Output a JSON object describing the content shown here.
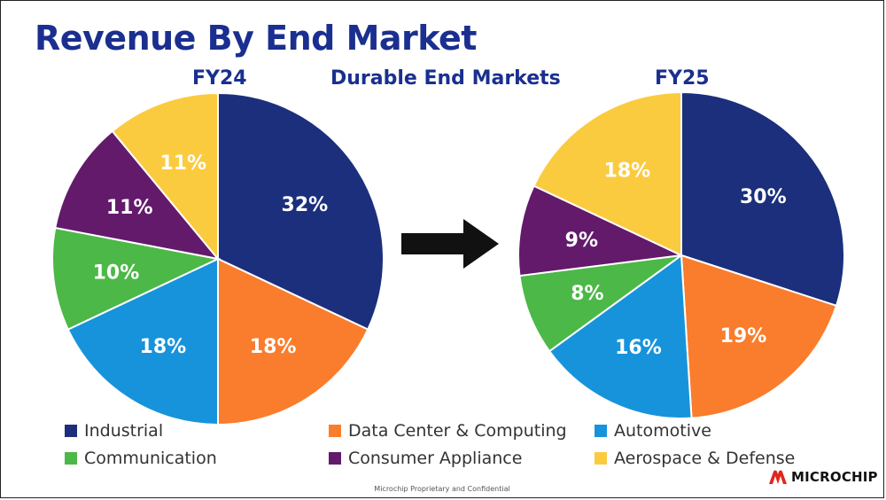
{
  "title": "Revenue By End Market",
  "subtitle": "Durable End Markets",
  "footer": "Microchip Proprietary and Confidential",
  "logo_text": "MICROCHIP",
  "colors": {
    "title": "#1a2f8f",
    "Industrial": "#1b2f7c",
    "Data Center & Computing": "#f97d2c",
    "Automotive": "#1793dc",
    "Communication": "#4cb847",
    "Consumer Appliance": "#631a6b",
    "Aerospace & Defense": "#fbcb3f",
    "arrow": "#111111",
    "logo_red": "#e1251b"
  },
  "legend": [
    {
      "label": "Industrial",
      "color": "#1b2f7c"
    },
    {
      "label": "Data Center & Computing",
      "color": "#f97d2c"
    },
    {
      "label": "Automotive",
      "color": "#1793dc"
    },
    {
      "label": "Communication",
      "color": "#4cb847"
    },
    {
      "label": "Consumer Appliance",
      "color": "#631a6b"
    },
    {
      "label": "Aerospace & Defense",
      "color": "#fbcb3f"
    }
  ],
  "chart_data": [
    {
      "type": "pie",
      "title": "FY24",
      "categories": [
        "Industrial",
        "Data Center & Computing",
        "Automotive",
        "Communication",
        "Consumer Appliance",
        "Aerospace & Defense"
      ],
      "values": [
        32,
        18,
        18,
        10,
        11,
        11
      ],
      "labels": [
        "32%",
        "18%",
        "18%",
        "10%",
        "11%",
        "11%"
      ]
    },
    {
      "type": "pie",
      "title": "FY25",
      "categories": [
        "Industrial",
        "Data Center & Computing",
        "Automotive",
        "Communication",
        "Consumer Appliance",
        "Aerospace & Defense"
      ],
      "values": [
        30,
        19,
        16,
        8,
        9,
        18
      ],
      "labels": [
        "30%",
        "19%",
        "16%",
        "8%",
        "9%",
        "18%"
      ]
    }
  ]
}
